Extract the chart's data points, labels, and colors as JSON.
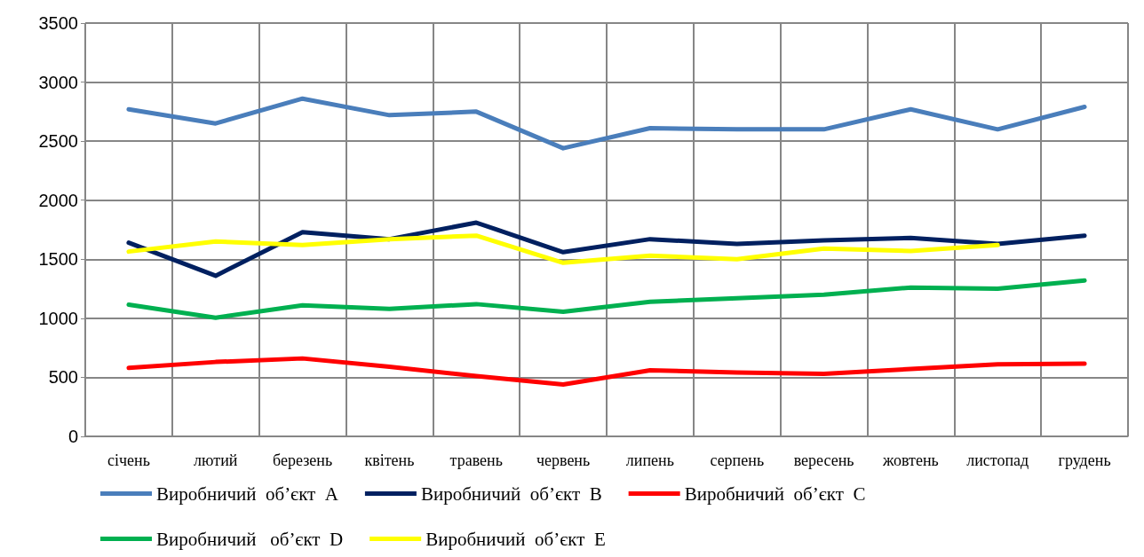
{
  "chart_data": {
    "type": "line",
    "categories": [
      "січень",
      "лютий",
      "березень",
      "квітень",
      "травень",
      "червень",
      "липень",
      "серпень",
      "вересень",
      "жовтень",
      "листопад",
      "грудень"
    ],
    "series": [
      {
        "name": "Виробничий  об’єкт  А",
        "color": "#4a7ebb",
        "values": [
          2770,
          2650,
          2860,
          2720,
          2750,
          2440,
          2610,
          2600,
          2600,
          2770,
          2600,
          2790
        ]
      },
      {
        "name": "Виробничий  об’єкт  В",
        "color": "#002060",
        "values": [
          1640,
          1360,
          1730,
          1670,
          1810,
          1560,
          1670,
          1630,
          1660,
          1680,
          1630,
          1700
        ]
      },
      {
        "name": "Виробничий  об’єкт  С",
        "color": "#ff0000",
        "values": [
          580,
          630,
          660,
          590,
          510,
          440,
          560,
          540,
          530,
          570,
          610,
          615
        ]
      },
      {
        "name": "Виробничий   об’єкт  D",
        "color": "#00b050",
        "values": [
          1115,
          1005,
          1110,
          1080,
          1120,
          1055,
          1140,
          1170,
          1200,
          1260,
          1250,
          1320
        ]
      },
      {
        "name": "Виробничий  об’єкт  Е",
        "color": "#ffff00",
        "values": [
          1565,
          1650,
          1620,
          1670,
          1700,
          1470,
          1530,
          1500,
          1590,
          1570,
          1620,
          null
        ]
      }
    ],
    "ylim": [
      0,
      3500
    ],
    "yticks": [
      0,
      500,
      1000,
      1500,
      2000,
      2500,
      3000,
      3500
    ],
    "grid": true,
    "legend": "bottom",
    "marker": "none",
    "line_style": "solid"
  }
}
